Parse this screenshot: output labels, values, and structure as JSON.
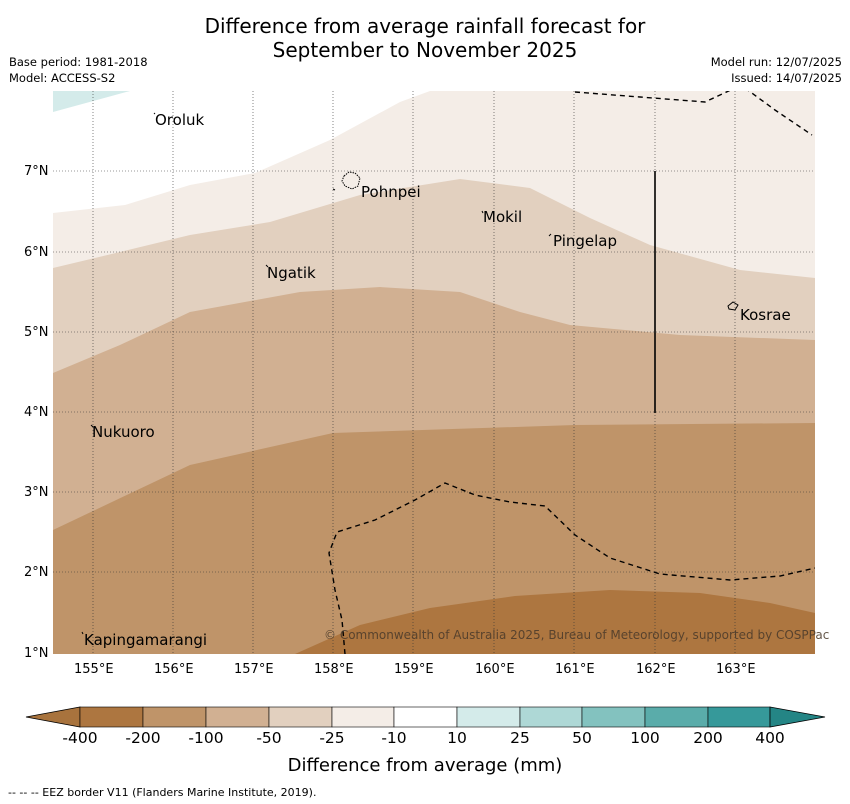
{
  "title": {
    "line1": "Difference from average rainfall forecast for",
    "line2": "September to November 2025"
  },
  "meta": {
    "base_period": "Base period: 1981-2018",
    "model": "Model: ACCESS-S2",
    "model_run": "Model run: 12/07/2025",
    "issued": "Issued: 14/07/2025"
  },
  "axes": {
    "lon_labels": [
      "155°E",
      "156°E",
      "157°E",
      "158°E",
      "159°E",
      "160°E",
      "161°E",
      "162°E",
      "163°E"
    ],
    "lat_labels": [
      "7°N",
      "6°N",
      "5°N",
      "4°N",
      "3°N",
      "2°N",
      "1°N"
    ]
  },
  "places": [
    {
      "name": "Oroluk"
    },
    {
      "name": "Pohnpei"
    },
    {
      "name": "Mokil"
    },
    {
      "name": "Pingelap"
    },
    {
      "name": "Ngatik"
    },
    {
      "name": "Kosrae"
    },
    {
      "name": "Nukuoro"
    },
    {
      "name": "Kapingamarangi"
    }
  ],
  "colorbar": {
    "labels": [
      "-400",
      "-200",
      "-100",
      "-50",
      "-25",
      "-10",
      "10",
      "25",
      "50",
      "100",
      "200",
      "400"
    ],
    "colors": [
      "#a8733d",
      "#ad7640",
      "#bf9469",
      "#d1b092",
      "#e2d0bf",
      "#f4ede7",
      "#ffffff",
      "#d4ebea",
      "#aed8d6",
      "#83c2bf",
      "#5aacaa",
      "#36999a",
      "#248585"
    ],
    "title": "Difference from average (mm)"
  },
  "copyright": "© Commonwealth of Australia 2025, Bureau of Meteorology, supported by COSPPac",
  "footnote": "-- -- -- EEZ border V11 (Flanders Marine Institute, 2019)."
}
